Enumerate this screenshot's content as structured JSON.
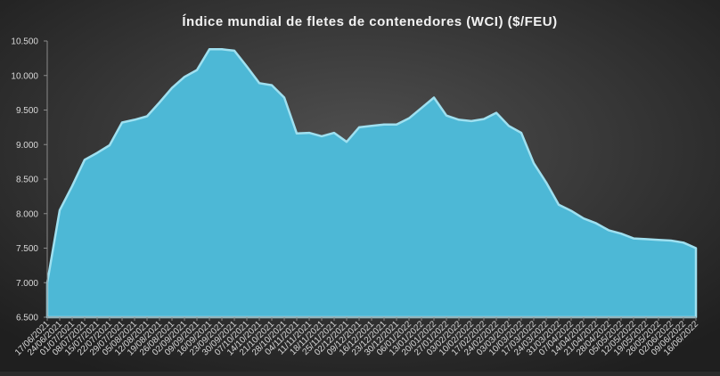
{
  "chart_data": {
    "type": "area",
    "title": "Índice mundial de fletes de contenedores (WCI) ($/FEU)",
    "categories": [
      "17/06/2021",
      "24/06/2021",
      "01/07/2021",
      "08/07/2021",
      "15/07/2021",
      "22/07/2021",
      "29/07/2021",
      "05/08/2021",
      "12/08/2021",
      "19/08/2021",
      "26/08/2021",
      "02/09/2021",
      "09/09/2021",
      "16/09/2021",
      "23/09/2021",
      "30/09/2021",
      "07/10/2021",
      "14/10/2021",
      "21/10/2021",
      "28/10/2021",
      "04/11/2021",
      "11/11/2021",
      "18/11/2021",
      "25/11/2021",
      "02/12/2021",
      "09/12/2021",
      "16/12/2021",
      "23/12/2021",
      "30/12/2021",
      "06/01/2022",
      "13/01/2022",
      "20/01/2022",
      "27/01/2022",
      "03/02/2022",
      "10/02/2022",
      "17/02/2022",
      "24/02/2022",
      "03/03/2022",
      "10/03/2022",
      "17/03/2022",
      "24/03/2022",
      "31/03/2022",
      "07/04/2022",
      "14/04/2022",
      "21/04/2022",
      "28/04/2022",
      "05/05/2022",
      "12/05/2022",
      "19/05/2022",
      "26/05/2022",
      "02/06/2022",
      "09/06/2022",
      "16/06/2022"
    ],
    "values": [
      7000,
      8050,
      8400,
      8780,
      8880,
      8990,
      9320,
      9360,
      9410,
      9610,
      9820,
      9980,
      10080,
      10380,
      10380,
      10360,
      10130,
      9890,
      9860,
      9680,
      9160,
      9170,
      9120,
      9170,
      9040,
      9250,
      9270,
      9290,
      9290,
      9380,
      9530,
      9680,
      9420,
      9360,
      9340,
      9370,
      9460,
      9270,
      9170,
      8730,
      8450,
      8130,
      8040,
      7930,
      7860,
      7760,
      7710,
      7640,
      7630,
      7620,
      7610,
      7580,
      7500
    ],
    "color": "#4db8d6",
    "ylim": [
      6500,
      10500
    ],
    "yticks": [
      {
        "value": 6500,
        "label": "6.500"
      },
      {
        "value": 7000,
        "label": "7.000"
      },
      {
        "value": 7500,
        "label": "7.500"
      },
      {
        "value": 8000,
        "label": "8.000"
      },
      {
        "value": 8500,
        "label": "8.500"
      },
      {
        "value": 9000,
        "label": "9.000"
      },
      {
        "value": 9500,
        "label": "9.500"
      },
      {
        "value": 10000,
        "label": "10.000"
      },
      {
        "value": 10500,
        "label": "10.500"
      }
    ]
  }
}
